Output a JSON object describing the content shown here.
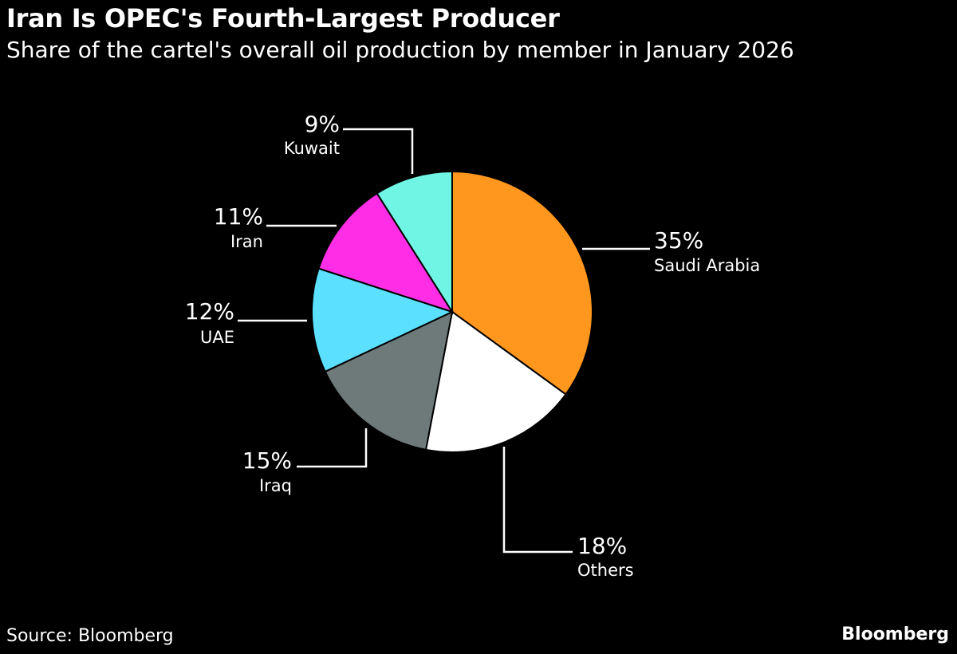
{
  "header": {
    "title": "Iran Is OPEC's Fourth-Largest Producer",
    "subtitle": "Share of the cartel's overall oil production by member in January 2026"
  },
  "footer": {
    "source": "Source: Bloomberg",
    "brand": "Bloomberg"
  },
  "chart_data": {
    "type": "pie",
    "title": "Iran Is OPEC's Fourth-Largest Producer",
    "subtitle": "Share of the cartel's overall oil production by member in January 2026",
    "slices": [
      {
        "label": "Saudi Arabia",
        "value": 35,
        "display": "35%",
        "color": "#FF961E"
      },
      {
        "label": "Others",
        "value": 18,
        "display": "18%",
        "color": "#FFFFFF"
      },
      {
        "label": "Iraq",
        "value": 15,
        "display": "15%",
        "color": "#6E7A7A"
      },
      {
        "label": "UAE",
        "value": 12,
        "display": "12%",
        "color": "#5BE0FF"
      },
      {
        "label": "Iran",
        "value": 11,
        "display": "11%",
        "color": "#FF2EE6"
      },
      {
        "label": "Kuwait",
        "value": 9,
        "display": "9%",
        "color": "#70F5E4"
      }
    ]
  }
}
